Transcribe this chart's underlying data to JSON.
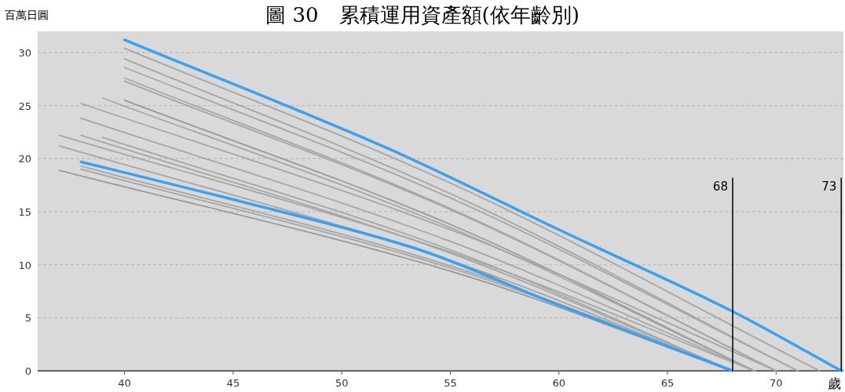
{
  "chart_data": {
    "type": "line",
    "title": "圖 30　累積運用資產額(依年齡別)",
    "xlabel": "歲",
    "ylabel": "百萬日圓",
    "xlim": [
      36,
      73.1
    ],
    "xticks": [
      40,
      45,
      50,
      55,
      60,
      65,
      70
    ],
    "ylim": [
      0,
      32
    ],
    "yticks": [
      0,
      5,
      10,
      15,
      20,
      25,
      30
    ],
    "grid": "y",
    "line_style": "solid",
    "marker": "none",
    "ref_lines": [
      {
        "axis": "x",
        "value": 68,
        "label": "68",
        "color": "#000000"
      },
      {
        "axis": "x",
        "value": 73,
        "label": "73",
        "color": "#000000"
      }
    ],
    "series": [
      {
        "color": "#a6a6a6",
        "x": [
          40,
          55,
          72
        ],
        "values": [
          30.4,
          17.7,
          0
        ]
      },
      {
        "color": "#a6a6a6",
        "x": [
          40,
          55,
          71
        ],
        "values": [
          29.4,
          16.7,
          0
        ]
      },
      {
        "color": "#a6a6a6",
        "x": [
          40,
          55,
          71
        ],
        "values": [
          28.6,
          16.3,
          0
        ]
      },
      {
        "color": "#a6a6a6",
        "x": [
          40,
          55,
          70
        ],
        "values": [
          27.6,
          15.3,
          0
        ]
      },
      {
        "color": "#a6a6a6",
        "x": [
          40,
          55,
          70
        ],
        "values": [
          27.3,
          15.2,
          0
        ]
      },
      {
        "color": "#999999",
        "x": [
          40,
          55,
          69
        ],
        "values": [
          25.5,
          13.8,
          0
        ]
      },
      {
        "color": "#a6a6a6",
        "x": [
          39,
          55,
          69
        ],
        "values": [
          25.7,
          13.5,
          0
        ]
      },
      {
        "color": "#a6a6a6",
        "x": [
          39,
          55,
          68
        ],
        "values": [
          22.0,
          11.4,
          0
        ]
      },
      {
        "color": "#a6a6a6",
        "x": [
          38,
          55,
          70
        ],
        "values": [
          25.2,
          13.3,
          0
        ]
      },
      {
        "color": "#a6a6a6",
        "x": [
          38,
          55,
          69
        ],
        "values": [
          23.8,
          12.2,
          0
        ]
      },
      {
        "color": "#a6a6a6",
        "x": [
          38,
          55,
          68
        ],
        "values": [
          22.2,
          11.1,
          0
        ]
      },
      {
        "color": "#a6a6a6",
        "x": [
          38,
          55,
          68
        ],
        "values": [
          19.3,
          9.9,
          0
        ]
      },
      {
        "color": "#a6a6a6",
        "x": [
          38,
          55,
          68
        ],
        "values": [
          19.0,
          9.7,
          0
        ]
      },
      {
        "color": "#a6a6a6",
        "x": [
          37,
          55,
          69
        ],
        "values": [
          22.2,
          11.2,
          0
        ]
      },
      {
        "color": "#a6a6a6",
        "x": [
          37,
          55,
          68
        ],
        "values": [
          21.2,
          10.4,
          0
        ]
      },
      {
        "color": "#999999",
        "x": [
          37,
          55,
          68
        ],
        "values": [
          18.9,
          9.4,
          0
        ]
      },
      {
        "color": "#3aa0f0",
        "x": [
          40,
          52.2,
          60,
          68,
          73
        ],
        "values": [
          31.2,
          20.9,
          13.3,
          5.6,
          0
        ]
      },
      {
        "color": "#3aa0f0",
        "x": [
          38,
          44.9,
          53.3,
          60,
          68
        ],
        "values": [
          19.7,
          16.2,
          11.6,
          6.2,
          0
        ]
      }
    ]
  }
}
